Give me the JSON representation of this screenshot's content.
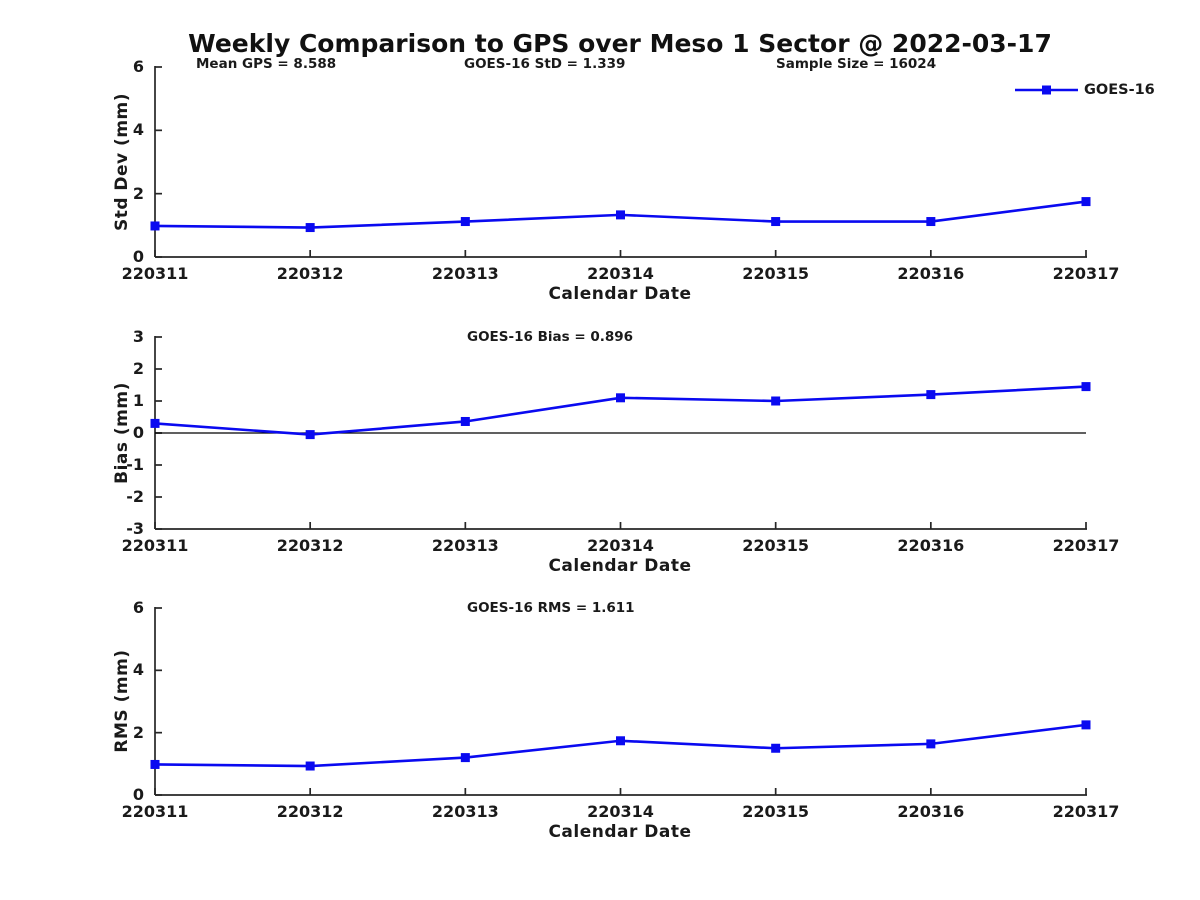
{
  "page": {
    "background": "#ffffff",
    "text_color": "#1a1a1a",
    "axis_color": "#262626",
    "accent_blue": "#0a0af0"
  },
  "header": {
    "title": "Weekly Comparison to GPS over Meso 1 Sector @ 2022-03-17"
  },
  "legend": {
    "series_label": "GOES-16",
    "position": "top-right"
  },
  "chart_data": [
    {
      "type": "line",
      "title": "Weekly Comparison to GPS over Meso 1 Sector @ 2022-03-17",
      "annotations": [
        "Mean GPS = 8.588",
        "GOES-16 StD = 1.339",
        "Sample Size = 16024"
      ],
      "categories": [
        "220311",
        "220312",
        "220313",
        "220314",
        "220315",
        "220316",
        "220317"
      ],
      "series": [
        {
          "name": "GOES-16",
          "color": "#0a0af0",
          "marker": "square",
          "values": [
            0.98,
            0.93,
            1.12,
            1.33,
            1.12,
            1.12,
            1.75
          ]
        }
      ],
      "xlabel": "Calendar Date",
      "ylabel": "Std Dev (mm)",
      "ylim": [
        0,
        6
      ],
      "yticks": [
        6,
        4,
        2,
        0
      ],
      "grid": false,
      "legend_position": "top-right-outside"
    },
    {
      "type": "line",
      "annotation": "GOES-16 Bias  = 0.896",
      "categories": [
        "220311",
        "220312",
        "220313",
        "220314",
        "220315",
        "220316",
        "220317"
      ],
      "series": [
        {
          "name": "GOES-16",
          "color": "#0a0af0",
          "marker": "square",
          "values": [
            0.3,
            -0.05,
            0.36,
            1.1,
            1.0,
            1.2,
            1.45
          ]
        }
      ],
      "xlabel": "Calendar Date",
      "ylabel": "Bias (mm)",
      "ylim": [
        -3,
        3
      ],
      "yticks": [
        3,
        2,
        1,
        0,
        -1,
        -2,
        -3
      ],
      "zero_line": true,
      "grid": false
    },
    {
      "type": "line",
      "annotation": "GOES-16 RMS = 1.611",
      "categories": [
        "220311",
        "220312",
        "220313",
        "220314",
        "220315",
        "220316",
        "220317"
      ],
      "series": [
        {
          "name": "GOES-16",
          "color": "#0a0af0",
          "marker": "square",
          "values": [
            0.98,
            0.93,
            1.2,
            1.74,
            1.5,
            1.64,
            2.25
          ]
        }
      ],
      "xlabel": "Calendar Date",
      "ylabel": "RMS (mm)",
      "ylim": [
        0,
        6
      ],
      "yticks": [
        6,
        4,
        2,
        0
      ],
      "grid": false
    }
  ]
}
